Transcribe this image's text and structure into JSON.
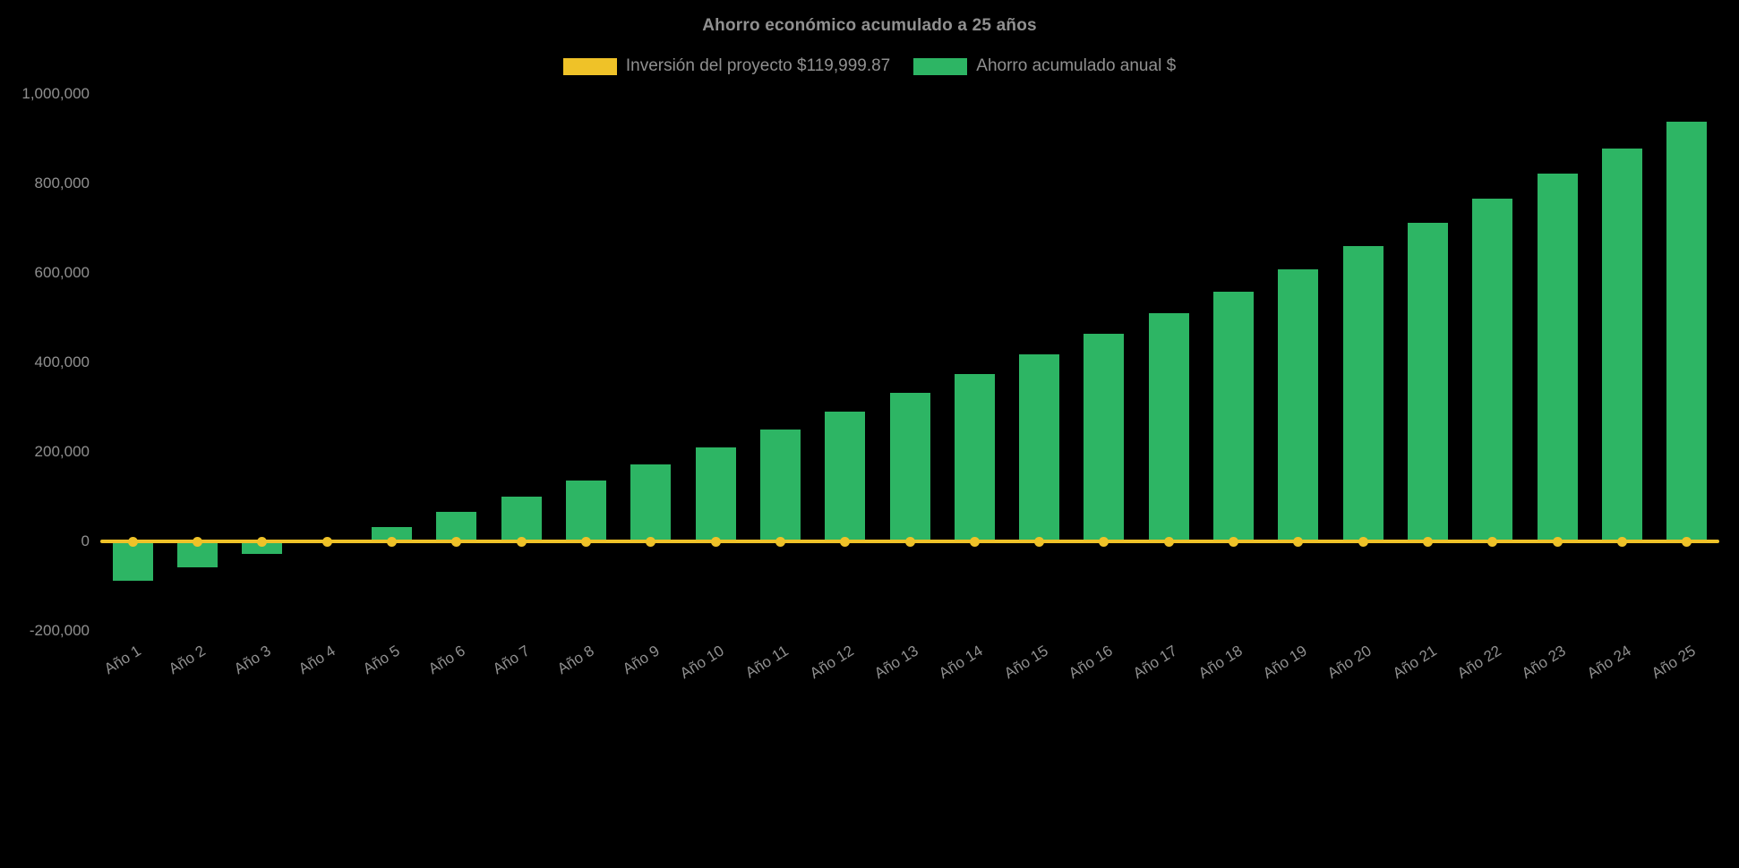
{
  "chart_data": {
    "type": "bar",
    "title": "Ahorro económico acumulado a 25 años",
    "background": "#000000",
    "text_color": "#909090",
    "grid": false,
    "legend_position": "top",
    "categories": [
      "Año 1",
      "Año 2",
      "Año 3",
      "Año 4",
      "Año 5",
      "Año 6",
      "Año 7",
      "Año 8",
      "Año 9",
      "Año 10",
      "Año 11",
      "Año 12",
      "Año 13",
      "Año 14",
      "Año 15",
      "Año 16",
      "Año 17",
      "Año 18",
      "Año 19",
      "Año 20",
      "Año 21",
      "Año 22",
      "Año 23",
      "Año 24",
      "Año 25"
    ],
    "series": [
      {
        "name": "Inversión del proyecto $119,999.87",
        "type": "line",
        "color": "#efc228",
        "investment_value": 119999.87,
        "values": [
          0,
          0,
          0,
          0,
          0,
          0,
          0,
          0,
          0,
          0,
          0,
          0,
          0,
          0,
          0,
          0,
          0,
          0,
          0,
          0,
          0,
          0,
          0,
          0,
          0
        ]
      },
      {
        "name": "Ahorro acumulado anual $",
        "type": "bar",
        "color": "#2db564",
        "values": [
          -88000,
          -58000,
          -28000,
          2000,
          33000,
          66000,
          100000,
          136000,
          173000,
          211000,
          250000,
          290000,
          332000,
          375000,
          419000,
          464000,
          511000,
          559000,
          609000,
          660000,
          713000,
          767000,
          822000,
          879000,
          938000
        ]
      }
    ],
    "ylim": [
      -200000,
      1000000
    ],
    "ytick_interval": 200000,
    "ytick_labels": [
      "1,000,000",
      "800,000",
      "600,000",
      "400,000",
      "200,000",
      "0",
      "-200,000"
    ]
  }
}
